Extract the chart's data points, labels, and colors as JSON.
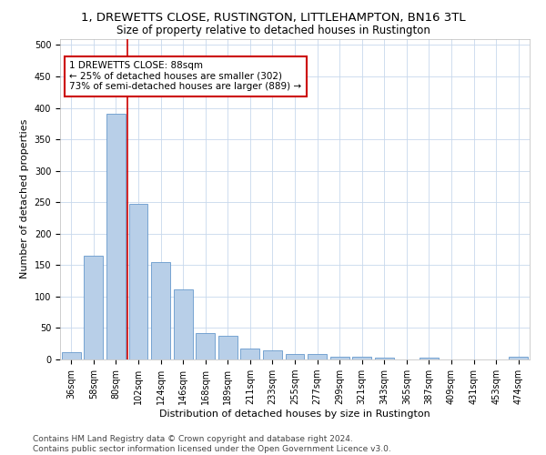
{
  "title1": "1, DREWETTS CLOSE, RUSTINGTON, LITTLEHAMPTON, BN16 3TL",
  "title2": "Size of property relative to detached houses in Rustington",
  "xlabel": "Distribution of detached houses by size in Rustington",
  "ylabel": "Number of detached properties",
  "categories": [
    "36sqm",
    "58sqm",
    "80sqm",
    "102sqm",
    "124sqm",
    "146sqm",
    "168sqm",
    "189sqm",
    "211sqm",
    "233sqm",
    "255sqm",
    "277sqm",
    "299sqm",
    "321sqm",
    "343sqm",
    "365sqm",
    "387sqm",
    "409sqm",
    "431sqm",
    "453sqm",
    "474sqm"
  ],
  "values": [
    11,
    165,
    390,
    247,
    155,
    112,
    42,
    38,
    17,
    14,
    9,
    8,
    5,
    4,
    3,
    0,
    3,
    0,
    0,
    0,
    4
  ],
  "bar_color": "#b8cfe8",
  "bar_edge_color": "#6699cc",
  "bar_linewidth": 0.6,
  "vline_x": 2.5,
  "vline_color": "#cc0000",
  "annotation_text": "1 DREWETTS CLOSE: 88sqm\n← 25% of detached houses are smaller (302)\n73% of semi-detached houses are larger (889) →",
  "annotation_box_color": "#ffffff",
  "annotation_box_edge": "#cc0000",
  "ylim": [
    0,
    510
  ],
  "yticks": [
    0,
    50,
    100,
    150,
    200,
    250,
    300,
    350,
    400,
    450,
    500
  ],
  "footer": "Contains HM Land Registry data © Crown copyright and database right 2024.\nContains public sector information licensed under the Open Government Licence v3.0.",
  "background_color": "#ffffff",
  "grid_color": "#c8d8ec",
  "title1_fontsize": 9.5,
  "title2_fontsize": 8.5,
  "xlabel_fontsize": 8,
  "ylabel_fontsize": 8,
  "tick_fontsize": 7,
  "footer_fontsize": 6.5,
  "annotation_fontsize": 7.5
}
